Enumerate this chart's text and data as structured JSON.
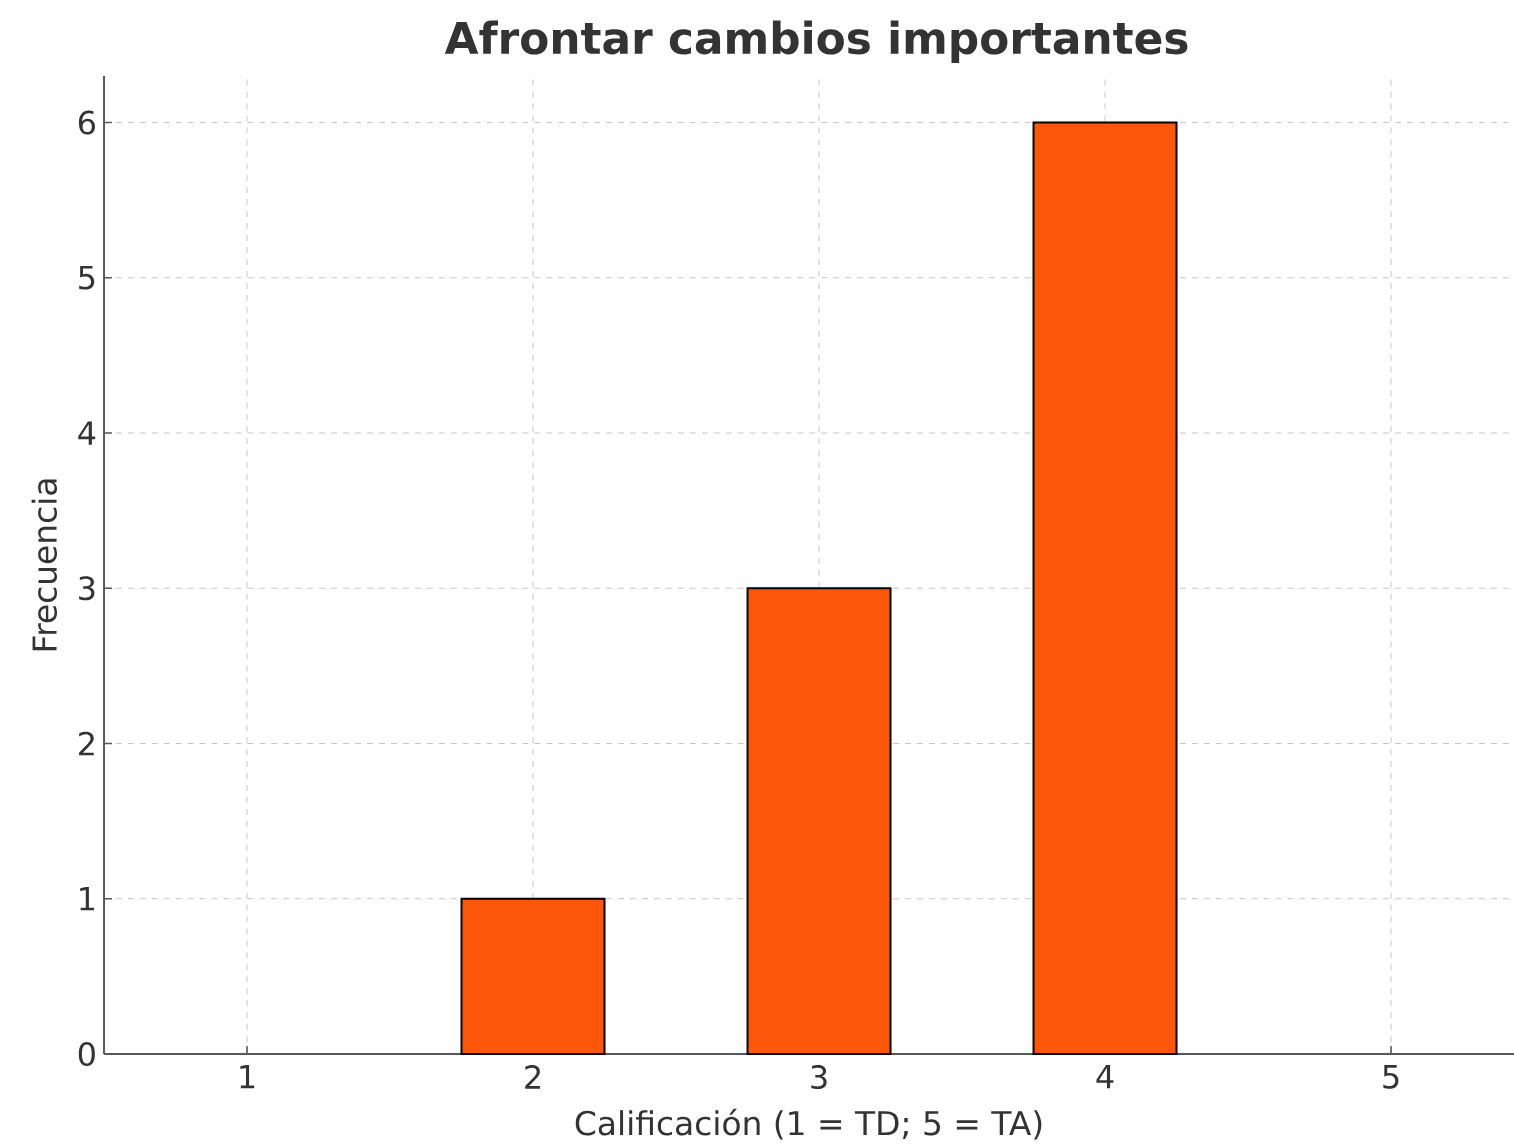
{
  "chart_data": {
    "type": "bar",
    "title": "Afrontar cambios importantes",
    "xlabel": "Calificación (1 = TD; 5 = TA)",
    "ylabel": "Frecuencia",
    "x": [
      2,
      3,
      4
    ],
    "values": [
      1,
      3,
      6
    ],
    "color": "#fc570a",
    "xlim": [
      0.5,
      5.43
    ],
    "ylim": [
      0,
      6.3
    ],
    "xticks": [
      1,
      2,
      3,
      4,
      5
    ],
    "yticks": [
      0,
      1,
      2,
      3,
      4,
      5,
      6
    ],
    "grid": true
  }
}
